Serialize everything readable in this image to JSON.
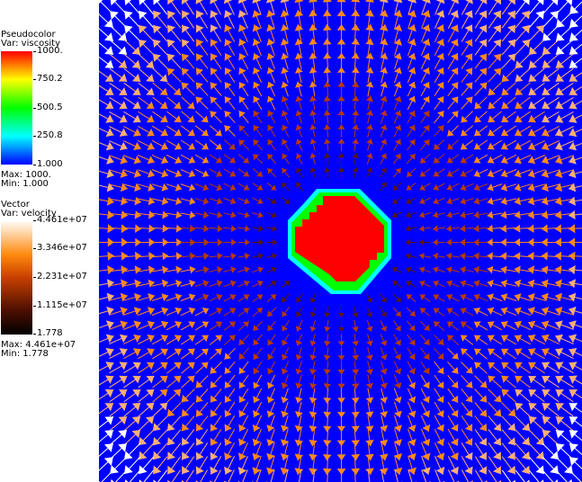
{
  "legends": {
    "pseudocolor": {
      "plot_type": "Pseudocolor",
      "var_label": "Var: viscosity",
      "ticks": [
        "1000.",
        "750.2",
        "500.5",
        "250.8",
        "1.000"
      ],
      "max_label": "Max: 1000.",
      "min_label": "Min: 1.000",
      "colormap": [
        "#ff0000",
        "#ffff00",
        "#00ff00",
        "#00ffff",
        "#0000ff"
      ]
    },
    "vector": {
      "plot_type": "Vector",
      "var_label": "Var: velocity",
      "ticks": [
        "4.461e+07",
        "3.346e+07",
        "2.231e+07",
        "1.115e+07",
        "1.778"
      ],
      "max_label": "Max: 4.461e+07",
      "min_label": "Min: 1.778",
      "colormap": [
        "#ffffff",
        "#ff8a10",
        "#c84000",
        "#501000",
        "#000000"
      ]
    }
  },
  "viewport": {
    "background_color": "#0000ff",
    "inclusion_colors": [
      "#00ffff",
      "#00ff00",
      "#ff0000"
    ],
    "glyph": "arrow-icon"
  }
}
